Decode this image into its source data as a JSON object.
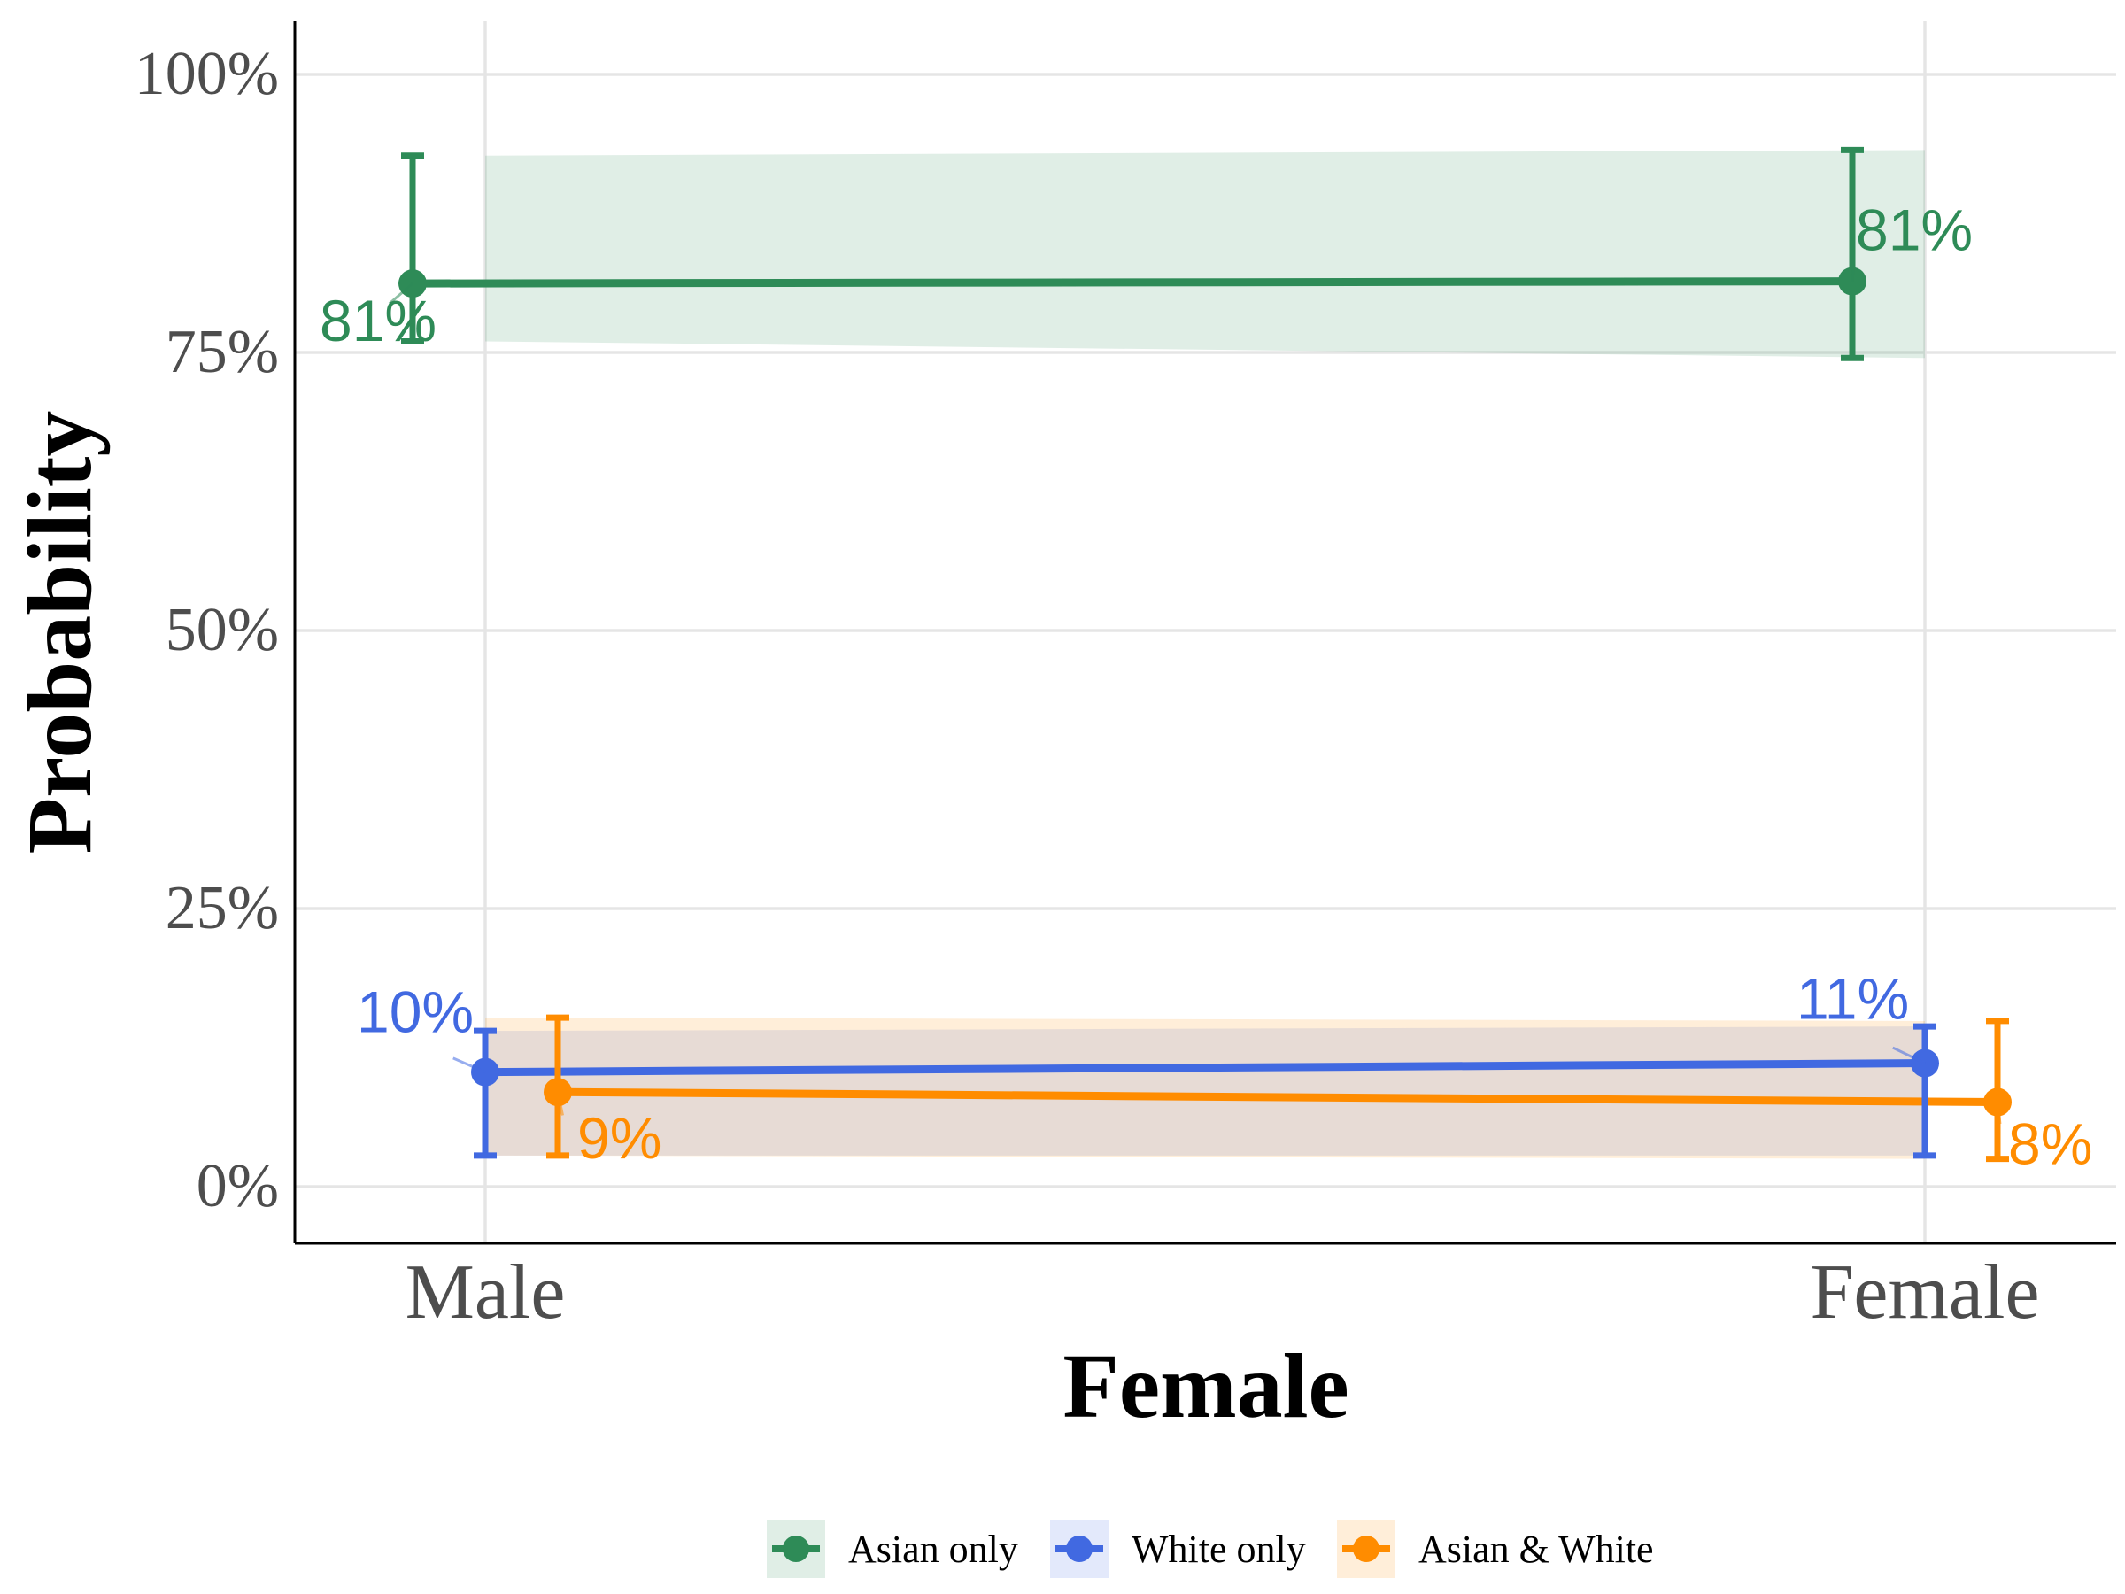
{
  "chart_data": {
    "type": "line",
    "title": "",
    "xlabel": "Female",
    "ylabel": "Probability",
    "categories": [
      "Male",
      "Female"
    ],
    "ylim": [
      -0.1,
      1.04
    ],
    "y_ticks": [
      0,
      0.25,
      0.5,
      0.75,
      1.0
    ],
    "y_tick_labels": [
      "0%",
      "25%",
      "50%",
      "75%",
      "100%"
    ],
    "grid": true,
    "legend_position": "bottom",
    "series": [
      {
        "name": "Asian only",
        "color": "#2E8B57",
        "values": [
          0.812,
          0.814
        ],
        "lower": [
          0.76,
          0.745
        ],
        "upper": [
          0.927,
          0.932
        ],
        "labels": [
          "81%",
          "81%"
        ]
      },
      {
        "name": "White only",
        "color": "#4169E1",
        "values": [
          0.103,
          0.111
        ],
        "lower": [
          0.028,
          0.028
        ],
        "upper": [
          0.14,
          0.144
        ],
        "labels": [
          "10%",
          "11%"
        ]
      },
      {
        "name": "Asian & White",
        "color": "#FF8C00",
        "values": [
          0.085,
          0.076
        ],
        "lower": [
          0.028,
          0.025
        ],
        "upper": [
          0.152,
          0.149
        ],
        "labels": [
          "9%",
          "8%"
        ]
      }
    ]
  }
}
